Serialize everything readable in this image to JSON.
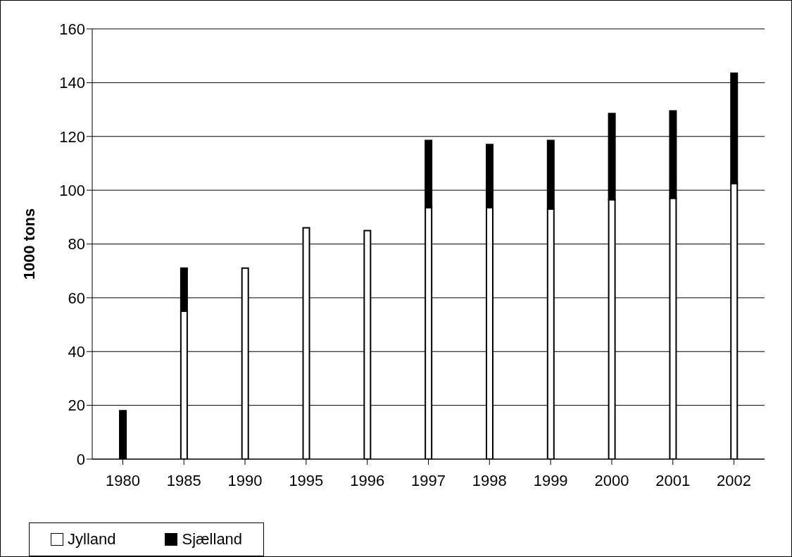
{
  "chart_data": {
    "type": "bar",
    "ylabel": "1000 tons",
    "categories": [
      "1980",
      "1985",
      "1990",
      "1995",
      "1996",
      "1997",
      "1998",
      "1999",
      "2000",
      "2001",
      "2002"
    ],
    "series": [
      {
        "name": "Jylland",
        "color": "#ffffff",
        "values": [
          0,
          55,
          71,
          86,
          85,
          93.5,
          93.5,
          93,
          96.5,
          97,
          102.5
        ]
      },
      {
        "name": "Sjælland",
        "color": "#000000",
        "values": [
          18,
          16,
          0,
          0,
          0,
          25,
          23.5,
          25.5,
          32,
          32.5,
          41
        ]
      }
    ],
    "stacked": true,
    "ylim": [
      0,
      160
    ],
    "yticks": [
      0,
      20,
      40,
      60,
      80,
      100,
      120,
      140,
      160
    ],
    "grid": "y",
    "legend": "bottom"
  }
}
